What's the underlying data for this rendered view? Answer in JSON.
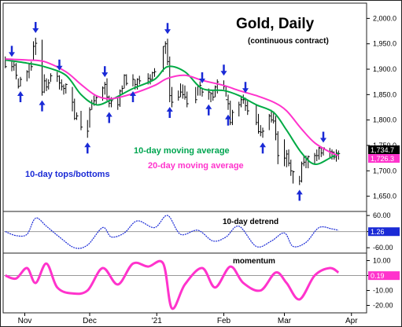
{
  "chart_data": [
    {
      "type": "line",
      "panel": "price",
      "title": "Gold, Daily",
      "subtitle": "(continuous contract)",
      "ylim": [
        1620,
        2030
      ],
      "y_ticks": [
        "2,000.0",
        "1,950.0",
        "1,900.0",
        "1,850.0",
        "1,800.0",
        "1,750.0",
        "1,700.0",
        "1,650.0"
      ],
      "y_tick_values": [
        2000,
        1950,
        1900,
        1850,
        1800,
        1750,
        1700,
        1650
      ],
      "x_ticks": [
        "Nov",
        "Dec",
        "'21",
        "Feb",
        "Mar",
        "Apr"
      ],
      "x_tick_dates": [
        "2020-11-01",
        "2020-12-01",
        "2021-01-01",
        "2021-02-01",
        "2021-03-01",
        "2021-04-01"
      ],
      "date_range": [
        "2020-10-22",
        "2021-04-08"
      ],
      "grid": false,
      "price_bars": {
        "x": [
          "2020-10-23",
          "2020-10-26",
          "2020-10-27",
          "2020-10-28",
          "2020-10-29",
          "2020-10-30",
          "2020-11-02",
          "2020-11-03",
          "2020-11-04",
          "2020-11-05",
          "2020-11-06",
          "2020-11-09",
          "2020-11-10",
          "2020-11-11",
          "2020-11-12",
          "2020-11-13",
          "2020-11-16",
          "2020-11-17",
          "2020-11-18",
          "2020-11-19",
          "2020-11-20",
          "2020-11-23",
          "2020-11-24",
          "2020-11-25",
          "2020-11-27",
          "2020-11-30",
          "2020-12-01",
          "2020-12-02",
          "2020-12-03",
          "2020-12-04",
          "2020-12-07",
          "2020-12-08",
          "2020-12-09",
          "2020-12-10",
          "2020-12-11",
          "2020-12-14",
          "2020-12-15",
          "2020-12-16",
          "2020-12-17",
          "2020-12-18",
          "2020-12-21",
          "2020-12-22",
          "2020-12-23",
          "2020-12-24",
          "2020-12-28",
          "2020-12-29",
          "2020-12-30",
          "2020-12-31",
          "2021-01-04",
          "2021-01-05",
          "2021-01-06",
          "2021-01-07",
          "2021-01-08",
          "2021-01-11",
          "2021-01-12",
          "2021-01-13",
          "2021-01-14",
          "2021-01-15",
          "2021-01-19",
          "2021-01-20",
          "2021-01-21",
          "2021-01-22",
          "2021-01-25",
          "2021-01-26",
          "2021-01-27",
          "2021-01-28",
          "2021-01-29",
          "2021-02-01",
          "2021-02-02",
          "2021-02-03",
          "2021-02-04",
          "2021-02-05",
          "2021-02-08",
          "2021-02-09",
          "2021-02-10",
          "2021-02-11",
          "2021-02-12",
          "2021-02-16",
          "2021-02-17",
          "2021-02-18",
          "2021-02-19",
          "2021-02-22",
          "2021-02-23",
          "2021-02-24",
          "2021-02-25",
          "2021-02-26",
          "2021-03-01",
          "2021-03-02",
          "2021-03-03",
          "2021-03-04",
          "2021-03-05",
          "2021-03-08",
          "2021-03-09",
          "2021-03-10",
          "2021-03-11",
          "2021-03-12",
          "2021-03-15",
          "2021-03-16",
          "2021-03-17",
          "2021-03-18",
          "2021-03-19",
          "2021-03-22",
          "2021-03-23",
          "2021-03-24",
          "2021-03-25",
          "2021-03-26"
        ],
        "high": [
          1925,
          1915,
          1915,
          1912,
          1882,
          1885,
          1898,
          1912,
          1915,
          1955,
          1962,
          1958,
          1890,
          1882,
          1880,
          1892,
          1895,
          1888,
          1880,
          1870,
          1872,
          1865,
          1842,
          1815,
          1818,
          1800,
          1825,
          1840,
          1848,
          1848,
          1866,
          1875,
          1882,
          1848,
          1845,
          1843,
          1860,
          1868,
          1890,
          1890,
          1890,
          1880,
          1882,
          1887,
          1892,
          1890,
          1895,
          1902,
          1945,
          1955,
          1960,
          1925,
          1865,
          1858,
          1872,
          1870,
          1868,
          1856,
          1865,
          1870,
          1876,
          1863,
          1862,
          1855,
          1857,
          1868,
          1880,
          1878,
          1868,
          1850,
          1838,
          1820,
          1836,
          1848,
          1850,
          1844,
          1838,
          1830,
          1812,
          1790,
          1785,
          1812,
          1820,
          1817,
          1808,
          1778,
          1762,
          1741,
          1742,
          1722,
          1700,
          1690,
          1718,
          1730,
          1730,
          1730,
          1735,
          1742,
          1747,
          1748,
          1746,
          1745,
          1742,
          1738,
          1742,
          1740
        ],
        "low": [
          1902,
          1896,
          1897,
          1880,
          1862,
          1866,
          1876,
          1882,
          1897,
          1917,
          1928,
          1848,
          1853,
          1857,
          1860,
          1875,
          1875,
          1860,
          1858,
          1850,
          1852,
          1817,
          1800,
          1800,
          1780,
          1765,
          1785,
          1820,
          1828,
          1830,
          1838,
          1850,
          1838,
          1825,
          1825,
          1820,
          1826,
          1850,
          1862,
          1868,
          1866,
          1860,
          1860,
          1870,
          1870,
          1870,
          1877,
          1885,
          1895,
          1930,
          1908,
          1835,
          1825,
          1838,
          1845,
          1842,
          1840,
          1825,
          1833,
          1848,
          1848,
          1846,
          1840,
          1835,
          1838,
          1845,
          1852,
          1860,
          1846,
          1820,
          1790,
          1790,
          1807,
          1825,
          1832,
          1818,
          1810,
          1790,
          1773,
          1768,
          1765,
          1780,
          1795,
          1793,
          1760,
          1713,
          1709,
          1707,
          1709,
          1690,
          1675,
          1672,
          1677,
          1709,
          1705,
          1705,
          1712,
          1719,
          1722,
          1727,
          1730,
          1725,
          1722,
          1722,
          1718,
          1722
        ],
        "close": [
          1905,
          1905,
          1908,
          1888,
          1866,
          1880,
          1895,
          1910,
          1905,
          1945,
          1951,
          1855,
          1877,
          1865,
          1873,
          1887,
          1886,
          1873,
          1866,
          1862,
          1870,
          1835,
          1803,
          1808,
          1786,
          1778,
          1820,
          1833,
          1838,
          1844,
          1863,
          1870,
          1845,
          1833,
          1838,
          1830,
          1857,
          1862,
          1888,
          1872,
          1880,
          1870,
          1880,
          1877,
          1882,
          1880,
          1893,
          1895,
          1945,
          1950,
          1915,
          1848,
          1835,
          1845,
          1855,
          1850,
          1845,
          1832,
          1840,
          1866,
          1868,
          1855,
          1855,
          1852,
          1845,
          1865,
          1875,
          1866,
          1840,
          1832,
          1795,
          1815,
          1830,
          1840,
          1840,
          1828,
          1818,
          1795,
          1777,
          1776,
          1778,
          1808,
          1800,
          1798,
          1772,
          1730,
          1725,
          1733,
          1715,
          1700,
          1698,
          1680,
          1714,
          1717,
          1725,
          1728,
          1730,
          1730,
          1745,
          1735,
          1745,
          1738,
          1737,
          1727,
          1735,
          1734
        ]
      },
      "series": [
        {
          "name": "10-day moving average",
          "color": "#00aa44",
          "x": [
            "2020-10-23",
            "2020-11-02",
            "2020-11-10",
            "2020-11-20",
            "2020-11-27",
            "2020-12-04",
            "2020-12-11",
            "2020-12-21",
            "2020-12-31",
            "2021-01-06",
            "2021-01-14",
            "2021-01-22",
            "2021-02-01",
            "2021-02-08",
            "2021-02-16",
            "2021-02-24",
            "2021-03-02",
            "2021-03-09",
            "2021-03-15",
            "2021-03-22",
            "2021-03-26"
          ],
          "y": [
            1918,
            1912,
            1905,
            1888,
            1850,
            1830,
            1840,
            1862,
            1880,
            1905,
            1895,
            1862,
            1858,
            1848,
            1830,
            1815,
            1780,
            1735,
            1713,
            1725,
            1735
          ]
        },
        {
          "name": "20-day moving average",
          "color": "#ff33cc",
          "x": [
            "2020-10-23",
            "2020-11-02",
            "2020-11-10",
            "2020-11-20",
            "2020-11-27",
            "2020-12-04",
            "2020-12-11",
            "2020-12-21",
            "2020-12-31",
            "2021-01-06",
            "2021-01-14",
            "2021-01-22",
            "2021-02-01",
            "2021-02-08",
            "2021-02-16",
            "2021-02-24",
            "2021-03-02",
            "2021-03-09",
            "2021-03-15",
            "2021-03-22",
            "2021-03-26"
          ],
          "y": [
            1920,
            1918,
            1915,
            1895,
            1870,
            1848,
            1842,
            1852,
            1868,
            1882,
            1888,
            1878,
            1868,
            1858,
            1848,
            1835,
            1818,
            1782,
            1755,
            1737,
            1730
          ]
        }
      ],
      "arrows": {
        "down_at": [
          "2020-10-26",
          "2020-11-06",
          "2020-11-17",
          "2020-12-08",
          "2021-01-06",
          "2021-01-22",
          "2021-02-01",
          "2021-02-11",
          "2021-03-19"
        ],
        "up_at": [
          "2020-10-30",
          "2020-11-09",
          "2020-11-30",
          "2020-12-10",
          "2020-12-21",
          "2021-01-07",
          "2021-01-25",
          "2021-02-03",
          "2021-02-19",
          "2021-03-08"
        ]
      },
      "annotations": [
        "10-day moving average",
        "20-day moving average",
        "10-day tops/bottoms"
      ],
      "readouts": [
        {
          "label": "1,734.7",
          "color": "#000000"
        },
        {
          "label": "1,726.3",
          "color": "#ff33cc"
        }
      ]
    },
    {
      "type": "line",
      "panel": "detrend",
      "title": "10-day detrend",
      "ylim": [
        -80,
        75
      ],
      "y_ticks": [
        "60.00",
        "0.00",
        "-60.00"
      ],
      "y_tick_values": [
        60,
        0,
        -60
      ],
      "series": [
        {
          "name": "10-day detrend",
          "color": "#1a2ad6",
          "x": [
            "2020-10-23",
            "2020-10-28",
            "2020-11-02",
            "2020-11-06",
            "2020-11-11",
            "2020-11-17",
            "2020-11-24",
            "2020-11-30",
            "2020-12-07",
            "2020-12-11",
            "2020-12-17",
            "2020-12-23",
            "2020-12-31",
            "2021-01-06",
            "2021-01-12",
            "2021-01-20",
            "2021-01-27",
            "2021-02-02",
            "2021-02-08",
            "2021-02-16",
            "2021-02-23",
            "2021-03-01",
            "2021-03-05",
            "2021-03-11",
            "2021-03-17",
            "2021-03-23",
            "2021-03-26"
          ],
          "y": [
            0,
            -15,
            -10,
            50,
            20,
            -20,
            -60,
            -50,
            15,
            -20,
            -5,
            40,
            15,
            60,
            -10,
            5,
            -35,
            -20,
            20,
            -55,
            -35,
            -5,
            -55,
            -40,
            15,
            10,
            5
          ]
        }
      ],
      "readouts": [
        {
          "label": "1.26",
          "color": "#1a2ad6"
        }
      ]
    },
    {
      "type": "line",
      "panel": "momentum",
      "title": "momentum",
      "ylim": [
        -25,
        15
      ],
      "y_ticks": [
        "10.00",
        "0.00",
        "-10.00",
        "-20.00"
      ],
      "y_tick_values": [
        10,
        0,
        -10,
        -20
      ],
      "series": [
        {
          "name": "momentum",
          "color": "#ff33cc",
          "x": [
            "2020-10-23",
            "2020-10-28",
            "2020-11-02",
            "2020-11-06",
            "2020-11-11",
            "2020-11-16",
            "2020-11-23",
            "2020-11-30",
            "2020-12-07",
            "2020-12-14",
            "2020-12-21",
            "2020-12-28",
            "2021-01-04",
            "2021-01-08",
            "2021-01-14",
            "2021-01-22",
            "2021-01-28",
            "2021-02-04",
            "2021-02-10",
            "2021-02-18",
            "2021-02-25",
            "2021-03-02",
            "2021-03-08",
            "2021-03-15",
            "2021-03-22",
            "2021-03-26"
          ],
          "y": [
            0,
            -2,
            5,
            -5,
            8,
            -8,
            -12,
            -10,
            5,
            -6,
            8,
            6,
            8,
            -22,
            -6,
            5,
            -8,
            6,
            -5,
            -10,
            2,
            -5,
            -16,
            0,
            5,
            2
          ]
        }
      ],
      "readouts": [
        {
          "label": "0.19",
          "color": "#ff33cc"
        }
      ]
    }
  ]
}
